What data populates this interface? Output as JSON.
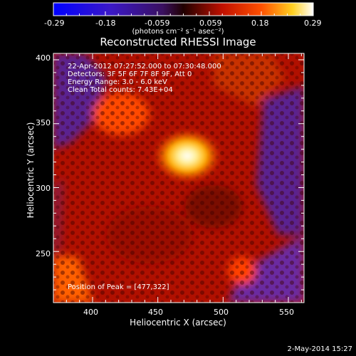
{
  "colorbar": {
    "ticks": [
      "-0.29",
      "-0.18",
      "-0.059",
      "0.059",
      "0.18",
      "0.29"
    ],
    "units_label": "(photons cm⁻² s⁻¹ asec⁻²)",
    "range": [
      -0.29,
      0.29
    ]
  },
  "chart_data": {
    "type": "heatmap",
    "title": "Reconstructed RHESSI Image",
    "xlabel": "Heliocentric X (arcsec)",
    "ylabel": "Heliocentric Y (arcsec)",
    "xlim": [
      370,
      562
    ],
    "ylim": [
      210,
      405
    ],
    "x_ticks": [
      "400",
      "450",
      "500",
      "550"
    ],
    "y_ticks": [
      "250",
      "300",
      "350",
      "400"
    ],
    "peak_position": [
      477,
      322
    ],
    "annotations": [
      "22-Apr-2012 07:27:52.000 to 07:30:48.000",
      "Detectors: 3F 5F 6F 7F 8F 9F, Att 0",
      "Energy Range: 3.0 - 6.0 keV",
      "Clean     Total counts: 7.43E+04"
    ],
    "peak_label": "Position of Peak = [477,322]"
  },
  "footer": {
    "timestamp": "2-May-2014 15:27"
  },
  "colors": {
    "background": "#000000",
    "axes": "#ffffff"
  }
}
